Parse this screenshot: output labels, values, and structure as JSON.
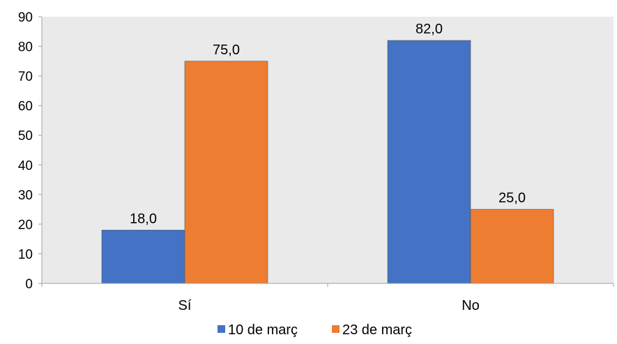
{
  "chart_data": {
    "type": "bar",
    "categories": [
      "Sí",
      "No"
    ],
    "series": [
      {
        "name": "10 de març",
        "values": [
          18.0,
          82.0
        ],
        "labels": [
          "18,0",
          "82,0"
        ],
        "color": "#4472C4"
      },
      {
        "name": "23 de març",
        "values": [
          75.0,
          25.0
        ],
        "labels": [
          "75,0",
          "25,0"
        ],
        "color": "#ED7D31"
      }
    ],
    "y_ticks": [
      "0",
      "10",
      "20",
      "30",
      "40",
      "50",
      "60",
      "70",
      "80",
      "90"
    ],
    "ylim": [
      0,
      90
    ],
    "grid": false,
    "legend_position": "bottom",
    "plot_background": "#EAEAEA"
  }
}
